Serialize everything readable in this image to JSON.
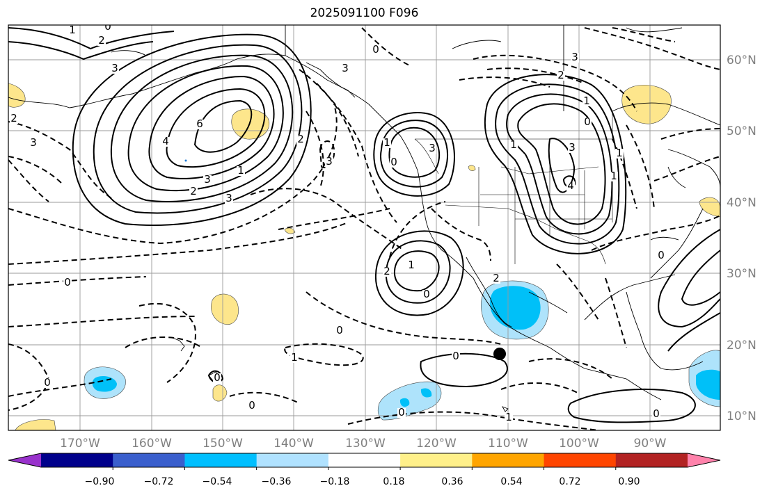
{
  "title": "2025091100 F096",
  "map": {
    "lat_ticks": [
      "10°N",
      "20°N",
      "30°N",
      "40°N",
      "50°N",
      "60°N"
    ],
    "lon_ticks": [
      "170°W",
      "160°W",
      "150°W",
      "140°W",
      "130°W",
      "120°W",
      "110°W",
      "100°W",
      "90°W"
    ],
    "contour_labels": [
      "1",
      "0",
      "2",
      "3",
      "6",
      "4",
      "2",
      "3",
      "1",
      "2",
      "3",
      "0",
      "0",
      "0",
      "3",
      "2",
      "3",
      "3",
      "0",
      "1",
      "3",
      "0",
      "0",
      "2",
      "1",
      "0",
      "1",
      "0",
      "0",
      "0",
      "1",
      "0",
      "2",
      "4",
      "3",
      "3",
      "2",
      "1",
      "1",
      "0",
      "1",
      "1",
      "0"
    ],
    "fill_colors": {
      "positive_light": "#fde68c",
      "negative_light": "#aee3fb",
      "negative_mid": "#00c0f8"
    }
  },
  "colorbar": {
    "colors": [
      "#9932cc",
      "#00008b",
      "#3a5fcd",
      "#00bfff",
      "#b0e2ff",
      "#ffffff",
      "#fff08a",
      "#ffa500",
      "#ff4500",
      "#b22222",
      "#ff82ab"
    ],
    "tick_labels": [
      "−0.90",
      "−0.72",
      "−0.54",
      "−0.36",
      "−0.18",
      "0.18",
      "0.36",
      "0.54",
      "0.72",
      "0.90"
    ]
  }
}
